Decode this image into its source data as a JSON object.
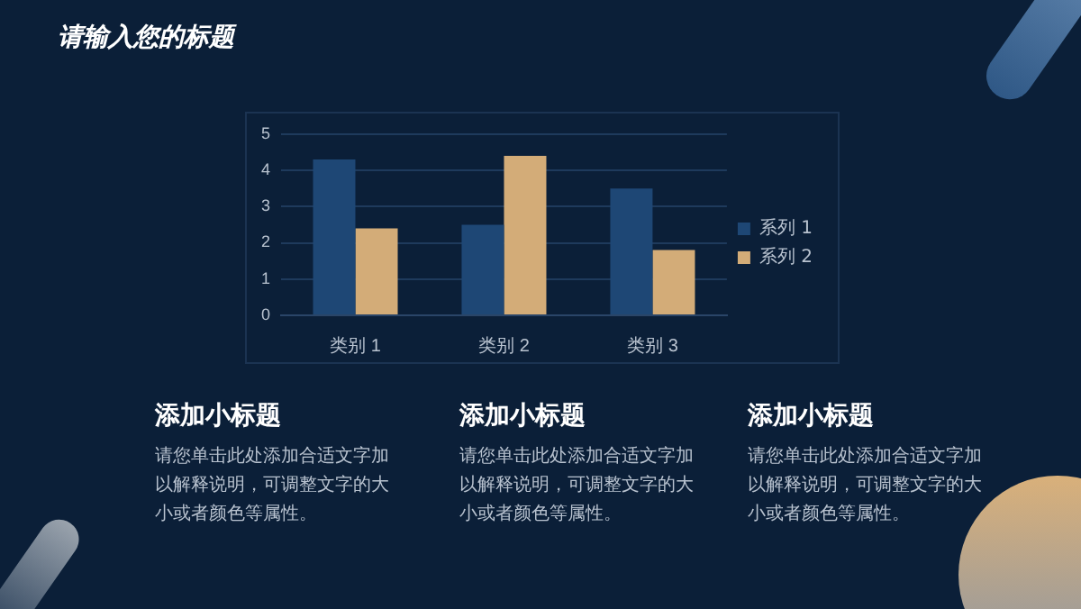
{
  "chart_data": {
    "type": "bar",
    "title": "请输入您的标题",
    "categories": [
      "类别 1",
      "类别 2",
      "类别 3"
    ],
    "series": [
      {
        "name": "系列 1",
        "color": "#1e4775",
        "values": [
          4.3,
          2.5,
          3.5
        ]
      },
      {
        "name": "系列 2",
        "color": "#d3ac78",
        "values": [
          2.4,
          4.4,
          1.8
        ]
      }
    ],
    "ylim": [
      0,
      5
    ],
    "yticks": [
      0,
      1,
      2,
      3,
      4,
      5
    ],
    "grid": "y",
    "legend": "right",
    "annotations": [
      "添加小标题",
      "请您单击此处添加合适文字加以解释说明，可调整文字的大小或者颜色等属性。",
      "添加小标题",
      "请您单击此处添加合适文字加以解释说明，可调整文字的大小或者颜色等属性。",
      "添加小标题",
      "请您单击此处添加合适文字加以解释说明，可调整文字的大小或者颜色等属性。"
    ]
  }
}
